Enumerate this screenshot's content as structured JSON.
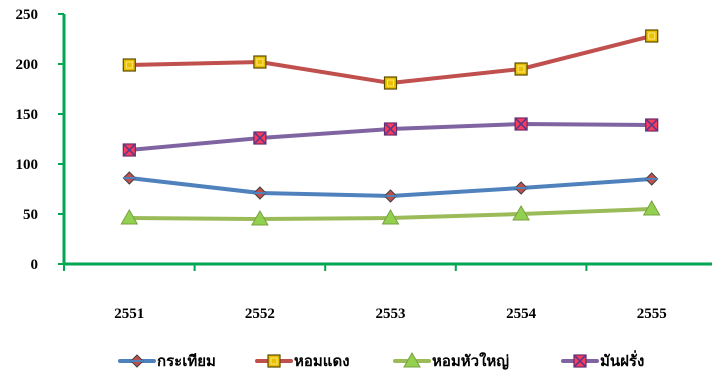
{
  "chart_data": {
    "type": "line",
    "title": "",
    "xlabel": "",
    "ylabel": "",
    "categories": [
      "2551",
      "2552",
      "2553",
      "2554",
      "2555"
    ],
    "ylim": [
      0,
      250
    ],
    "yticks": [
      "0",
      "50",
      "100",
      "150",
      "200",
      "250"
    ],
    "grid": false,
    "legend": "bottom",
    "series": [
      {
        "name": "กระเทียม",
        "values": [
          86,
          71,
          68,
          76,
          85
        ],
        "color": "#4F81BD",
        "marker": "diamond",
        "marker_color": "#C0504D"
      },
      {
        "name": "หอมแดง",
        "values": [
          199,
          202,
          181,
          195,
          228
        ],
        "color": "#C0504D",
        "marker": "square",
        "marker_color": "#E8C000"
      },
      {
        "name": "หอมหัวใหญ่",
        "values": [
          46,
          45,
          46,
          50,
          55
        ],
        "color": "#9BBB59",
        "marker": "triangle",
        "marker_color": "#92D050"
      },
      {
        "name": "มันฝรั่ง",
        "values": [
          114,
          126,
          135,
          140,
          139
        ],
        "color": "#8064A2",
        "marker": "square-x",
        "marker_color": "#FF3B5C"
      }
    ],
    "axis_color": "#00A651"
  }
}
